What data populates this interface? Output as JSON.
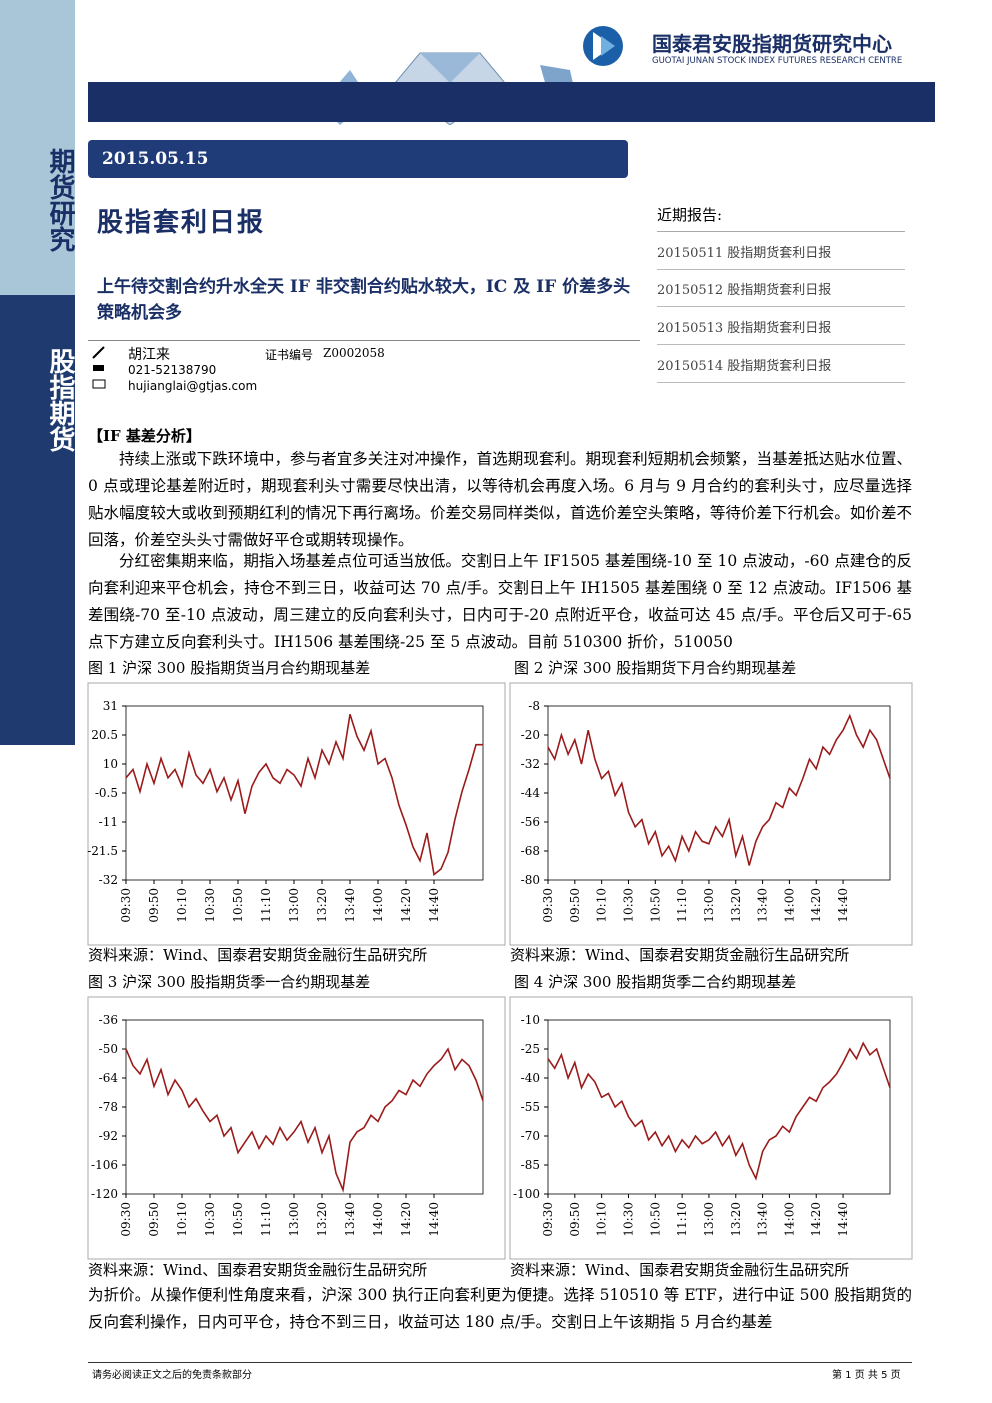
{
  "sidebar": {
    "top": "期货研究",
    "bottom": "股指期货"
  },
  "header": {
    "org_cn": "国泰君安股指期货研究中心",
    "org_en": "GUOTAI JUNAN STOCK INDEX FUTURES RESEARCH CENTRE"
  },
  "date": "2015.05.15",
  "title": "股指套利日报",
  "headline": "上午待交割合约升水全天 IF 非交割合约贴水较大，IC 及 IF 价差多头策略机会多",
  "author": {
    "name": "胡江来",
    "cert_label": "证书编号",
    "cert_no": "Z0002058",
    "phone": "021-52138790",
    "email": "hujianglai@gtjas.com"
  },
  "recent": {
    "heading": "近期报告:",
    "items": [
      "20150511 股指期货套利日报",
      "20150512 股指期货套利日报",
      "20150513 股指期货套利日报",
      "20150514 股指期货套利日报"
    ]
  },
  "section": "【IF 基差分析】",
  "paragraphs": [
    "持续上涨或下跌环境中，参与者宜多关注对冲操作，首选期现套利。期现套利短期机会频繁，当基差抵达贴水位置、0 点或理论基差附近时，期现套利头寸需要尽快出清，以等待机会再度入场。6 月与 9 月合约的套利头寸，应尽量选择贴水幅度较大或收到预期红利的情况下再行离场。价差交易同样类似，首选价差空头策略，等待价差下行机会。如价差不回落，价差空头头寸需做好平仓或期转现操作。",
    "分红密集期来临，期指入场基差点位可适当放低。交割日上午 IF1505 基差围绕-10 至 10 点波动，-60 点建仓的反向套利迎来平仓机会，持仓不到三日，收益可达 70 点/手。交割日上午 IH1505 基差围绕 0 至 12 点波动。IF1506 基差围绕-70 至-10 点波动，周三建立的反向套利头寸，日内可于-20 点附近平仓，收益可达 45 点/手。平仓后又可于-65 点下方建立反向套利头寸。IH1506 基差围绕-25 至 5 点波动。目前 510300 折价，510050",
    "为折价。从操作便利性角度来看，沪深 300 执行正向套利更为便捷。选择 510510 等 ETF，进行中证 500 股指期货的反向套利操作，日内可平仓，持仓不到三日，收益可达 180 点/手。交割日上午该期指 5 月合约基差"
  ],
  "footer": {
    "left": "请务必阅读正文之后的免责条款部分",
    "right": "第 1 页 共 5 页"
  },
  "chart_data": [
    {
      "type": "line",
      "title": "图 1 沪深 300 股指期货当月合约期现基差",
      "source": "资料来源：Wind、国泰君安期货金融衍生品研究所",
      "color": "#9b1b1b",
      "categories": [
        "09:30",
        null,
        null,
        null,
        "09:50",
        null,
        null,
        null,
        "10:10",
        null,
        null,
        null,
        "10:30",
        null,
        null,
        null,
        "10:50",
        null,
        null,
        null,
        "11:10",
        null,
        null,
        null,
        "13:00",
        null,
        null,
        null,
        "13:20",
        null,
        null,
        null,
        "13:40",
        null,
        null,
        null,
        "14:00",
        null,
        null,
        null,
        "14:20",
        null,
        null,
        null,
        "14:40",
        null,
        null,
        null,
        null,
        null,
        null,
        null
      ],
      "values": [
        5,
        8,
        0,
        10,
        3,
        12,
        5,
        8,
        2,
        14,
        6,
        3,
        8,
        0,
        5,
        -3,
        4,
        -8,
        2,
        7,
        10,
        5,
        3,
        8,
        6,
        2,
        12,
        5,
        15,
        10,
        18,
        12,
        28,
        20,
        15,
        22,
        10,
        12,
        5,
        -5,
        -12,
        -20,
        -25,
        -15,
        -30,
        -28,
        -22,
        -10,
        0,
        8,
        17,
        17
      ],
      "ylim": [
        -32,
        31
      ],
      "yticks": [
        31,
        20.5,
        10,
        -0.5,
        -11,
        -21.5,
        -32
      ]
    },
    {
      "type": "line",
      "title": "图 2 沪深 300 股指期货下月合约期现基差",
      "source": "资料来源：Wind、国泰君安期货金融衍生品研究所",
      "color": "#9b1b1b",
      "categories": [
        "09:30",
        null,
        null,
        null,
        "09:50",
        null,
        null,
        null,
        "10:10",
        null,
        null,
        null,
        "10:30",
        null,
        null,
        null,
        "10:50",
        null,
        null,
        null,
        "11:10",
        null,
        null,
        null,
        "13:00",
        null,
        null,
        null,
        "13:20",
        null,
        null,
        null,
        "13:40",
        null,
        null,
        null,
        "14:00",
        null,
        null,
        null,
        "14:20",
        null,
        null,
        null,
        "14:40",
        null,
        null,
        null,
        null,
        null,
        null,
        null
      ],
      "values": [
        -25,
        -30,
        -20,
        -28,
        -22,
        -32,
        -18,
        -30,
        -38,
        -35,
        -45,
        -40,
        -52,
        -58,
        -55,
        -65,
        -60,
        -70,
        -66,
        -72,
        -62,
        -68,
        -60,
        -64,
        -65,
        -58,
        -62,
        -55,
        -70,
        -62,
        -74,
        -64,
        -58,
        -55,
        -48,
        -50,
        -42,
        -45,
        -38,
        -30,
        -34,
        -25,
        -28,
        -22,
        -18,
        -12,
        -20,
        -25,
        -18,
        -22,
        -30,
        -38
      ],
      "ylim": [
        -80,
        -8
      ],
      "yticks": [
        -8,
        -20,
        -32,
        -44,
        -56,
        -68,
        -80
      ]
    },
    {
      "type": "line",
      "title": "图 3 沪深 300 股指期货季一合约期现基差",
      "source": "资料来源：Wind、国泰君安期货金融衍生品研究所",
      "color": "#9b1b1b",
      "categories": [
        "09:30",
        null,
        null,
        null,
        "09:50",
        null,
        null,
        null,
        "10:10",
        null,
        null,
        null,
        "10:30",
        null,
        null,
        null,
        "10:50",
        null,
        null,
        null,
        "11:10",
        null,
        null,
        null,
        "13:00",
        null,
        null,
        null,
        "13:20",
        null,
        null,
        null,
        "13:40",
        null,
        null,
        null,
        "14:00",
        null,
        null,
        null,
        "14:20",
        null,
        null,
        null,
        "14:40",
        null,
        null,
        null,
        null,
        null,
        null,
        null
      ],
      "values": [
        -50,
        -58,
        -62,
        -55,
        -68,
        -60,
        -72,
        -65,
        -70,
        -78,
        -74,
        -80,
        -85,
        -82,
        -92,
        -88,
        -100,
        -95,
        -90,
        -98,
        -92,
        -96,
        -88,
        -94,
        -90,
        -85,
        -95,
        -88,
        -100,
        -92,
        -110,
        -118,
        -95,
        -90,
        -88,
        -82,
        -85,
        -78,
        -75,
        -70,
        -72,
        -65,
        -68,
        -62,
        -58,
        -55,
        -50,
        -60,
        -55,
        -58,
        -65,
        -75
      ],
      "ylim": [
        -120,
        -36
      ],
      "yticks": [
        -36,
        -50,
        -64,
        -78,
        -92,
        -106,
        -120
      ]
    },
    {
      "type": "line",
      "title": "图 4 沪深 300 股指期货季二合约期现基差",
      "source": "资料来源：Wind、国泰君安期货金融衍生品研究所",
      "color": "#9b1b1b",
      "categories": [
        "09:30",
        null,
        null,
        null,
        "09:50",
        null,
        null,
        null,
        "10:10",
        null,
        null,
        null,
        "10:30",
        null,
        null,
        null,
        "10:50",
        null,
        null,
        null,
        "11:10",
        null,
        null,
        null,
        "13:00",
        null,
        null,
        null,
        "13:20",
        null,
        null,
        null,
        "13:40",
        null,
        null,
        null,
        "14:00",
        null,
        null,
        null,
        "14:20",
        null,
        null,
        null,
        "14:40",
        null,
        null,
        null,
        null,
        null,
        null,
        null
      ],
      "values": [
        -30,
        -35,
        -28,
        -40,
        -32,
        -45,
        -38,
        -42,
        -50,
        -48,
        -55,
        -52,
        -60,
        -65,
        -62,
        -72,
        -68,
        -75,
        -70,
        -78,
        -72,
        -76,
        -70,
        -74,
        -72,
        -68,
        -75,
        -70,
        -80,
        -74,
        -85,
        -92,
        -78,
        -72,
        -70,
        -65,
        -68,
        -60,
        -55,
        -50,
        -52,
        -45,
        -42,
        -38,
        -32,
        -25,
        -30,
        -22,
        -28,
        -25,
        -35,
        -45
      ],
      "ylim": [
        -100,
        -10
      ],
      "yticks": [
        -10,
        -25,
        -40,
        -55,
        -70,
        -85,
        -100
      ]
    }
  ]
}
